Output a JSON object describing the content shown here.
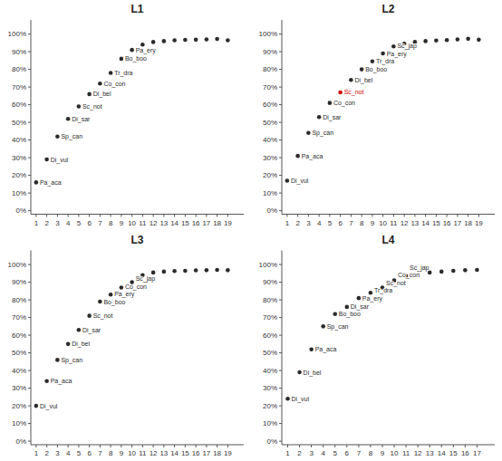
{
  "chart_data": [
    {
      "type": "scatter",
      "title": "L1",
      "x": [
        1,
        2,
        3,
        4,
        5,
        6,
        7,
        8,
        9,
        10,
        11,
        12,
        13,
        14,
        15,
        16,
        17,
        18,
        19
      ],
      "values": [
        0.16,
        0.29,
        0.42,
        0.52,
        0.59,
        0.66,
        0.72,
        0.78,
        0.86,
        0.91,
        0.94,
        0.955,
        0.96,
        0.965,
        0.967,
        0.968,
        0.97,
        0.972,
        0.965
      ],
      "color": "#2b2b2b",
      "annotations": [
        {
          "x": 1,
          "y": 0.16,
          "text": "Pa_aca",
          "color": "#2b2b2b"
        },
        {
          "x": 2,
          "y": 0.29,
          "text": "Di_vul",
          "color": "#2b2b2b"
        },
        {
          "x": 3,
          "y": 0.42,
          "text": "Sp_can",
          "color": "#2b2b2b"
        },
        {
          "x": 4,
          "y": 0.52,
          "text": "Di_sar",
          "color": "#2b2b2b"
        },
        {
          "x": 5,
          "y": 0.59,
          "text": "Sc_not",
          "color": "#2b2b2b"
        },
        {
          "x": 6,
          "y": 0.66,
          "text": "Di_bel",
          "color": "#2b2b2b"
        },
        {
          "x": 7,
          "y": 0.72,
          "text": "Co_con",
          "color": "#2b2b2b"
        },
        {
          "x": 8,
          "y": 0.78,
          "text": "Tr_dra",
          "color": "#2b2b2b"
        },
        {
          "x": 9,
          "y": 0.86,
          "text": "Bo_boo",
          "color": "#2b2b2b"
        },
        {
          "x": 10,
          "y": 0.91,
          "text": "Pa_ery",
          "color": "#2b2b2b"
        }
      ],
      "xlim": [
        0.5,
        20.5
      ],
      "ylim": [
        -0.02,
        1.08
      ],
      "xticks": [
        1,
        2,
        3,
        4,
        5,
        6,
        7,
        8,
        9,
        10,
        11,
        12,
        13,
        14,
        15,
        16,
        17,
        18,
        19
      ],
      "yticks": [
        {
          "value": 0.0,
          "label": "0%"
        },
        {
          "value": 0.1,
          "label": "10%"
        },
        {
          "value": 0.2,
          "label": "20%"
        },
        {
          "value": 0.3,
          "label": "30%"
        },
        {
          "value": 0.4,
          "label": "40%"
        },
        {
          "value": 0.5,
          "label": "50%"
        },
        {
          "value": 0.6,
          "label": "60%"
        },
        {
          "value": 0.7,
          "label": "70%"
        },
        {
          "value": 0.8,
          "label": "80%"
        },
        {
          "value": 0.9,
          "label": "90%"
        },
        {
          "value": 1.0,
          "label": "100%"
        }
      ],
      "grid": false
    },
    {
      "type": "scatter",
      "title": "L2",
      "x": [
        1,
        2,
        3,
        4,
        5,
        6,
        7,
        8,
        9,
        10,
        11,
        12,
        13,
        14,
        15,
        16,
        17,
        18,
        19
      ],
      "values": [
        0.17,
        0.31,
        0.44,
        0.53,
        0.61,
        0.67,
        0.74,
        0.8,
        0.845,
        0.89,
        0.93,
        0.945,
        0.955,
        0.96,
        0.963,
        0.966,
        0.97,
        0.973,
        0.968
      ],
      "colors": [
        "#2b2b2b",
        "#2b2b2b",
        "#2b2b2b",
        "#2b2b2b",
        "#2b2b2b",
        "#cc0000",
        "#2b2b2b",
        "#2b2b2b",
        "#2b2b2b",
        "#2b2b2b",
        "#2b2b2b",
        "#2b2b2b",
        "#2b2b2b",
        "#2b2b2b",
        "#2b2b2b",
        "#2b2b2b",
        "#2b2b2b",
        "#2b2b2b",
        "#2b2b2b"
      ],
      "annotations": [
        {
          "x": 1,
          "y": 0.17,
          "text": "Di_vul",
          "color": "#2b2b2b"
        },
        {
          "x": 2,
          "y": 0.31,
          "text": "Pa_aca",
          "color": "#2b2b2b"
        },
        {
          "x": 3,
          "y": 0.44,
          "text": "Sp_can",
          "color": "#2b2b2b"
        },
        {
          "x": 4,
          "y": 0.53,
          "text": "Di_sar",
          "color": "#2b2b2b"
        },
        {
          "x": 5,
          "y": 0.61,
          "text": "Co_con",
          "color": "#2b2b2b"
        },
        {
          "x": 6,
          "y": 0.67,
          "text": "Sc_not",
          "color": "#cc0000"
        },
        {
          "x": 7,
          "y": 0.74,
          "text": "Di_bel",
          "color": "#2b2b2b"
        },
        {
          "x": 8,
          "y": 0.8,
          "text": "Bo_boo",
          "color": "#2b2b2b"
        },
        {
          "x": 9,
          "y": 0.845,
          "text": "Tr_dra",
          "color": "#2b2b2b"
        },
        {
          "x": 10,
          "y": 0.89,
          "text": "Pa_ery",
          "color": "#2b2b2b"
        },
        {
          "x": 11,
          "y": 0.93,
          "text": "Sc_jap",
          "color": "#2b2b2b"
        }
      ],
      "xlim": [
        0.5,
        20.5
      ],
      "ylim": [
        -0.02,
        1.08
      ],
      "xticks": [
        1,
        2,
        3,
        4,
        5,
        6,
        7,
        8,
        9,
        10,
        11,
        12,
        13,
        14,
        15,
        16,
        17,
        18,
        19
      ],
      "yticks": [
        {
          "value": 0.0,
          "label": "0%"
        },
        {
          "value": 0.1,
          "label": "10%"
        },
        {
          "value": 0.2,
          "label": "20%"
        },
        {
          "value": 0.3,
          "label": "30%"
        },
        {
          "value": 0.4,
          "label": "40%"
        },
        {
          "value": 0.5,
          "label": "50%"
        },
        {
          "value": 0.6,
          "label": "60%"
        },
        {
          "value": 0.7,
          "label": "70%"
        },
        {
          "value": 0.8,
          "label": "80%"
        },
        {
          "value": 0.9,
          "label": "90%"
        },
        {
          "value": 1.0,
          "label": "100%"
        }
      ],
      "grid": false
    },
    {
      "type": "scatter",
      "title": "L3",
      "x": [
        1,
        2,
        3,
        4,
        5,
        6,
        7,
        8,
        9,
        10,
        11,
        12,
        13,
        14,
        15,
        16,
        17,
        18,
        19
      ],
      "values": [
        0.2,
        0.34,
        0.46,
        0.55,
        0.63,
        0.71,
        0.79,
        0.83,
        0.87,
        0.9,
        0.94,
        0.955,
        0.96,
        0.963,
        0.965,
        0.967,
        0.968,
        0.97,
        0.968
      ],
      "color": "#2b2b2b",
      "annotations": [
        {
          "x": 1,
          "y": 0.2,
          "text": "Di_vul",
          "color": "#2b2b2b"
        },
        {
          "x": 2,
          "y": 0.34,
          "text": "Pa_aca",
          "color": "#2b2b2b"
        },
        {
          "x": 3,
          "y": 0.46,
          "text": "Sp_can",
          "color": "#2b2b2b"
        },
        {
          "x": 4,
          "y": 0.55,
          "text": "Di_bel",
          "color": "#2b2b2b"
        },
        {
          "x": 5,
          "y": 0.63,
          "text": "Di_sar",
          "color": "#2b2b2b"
        },
        {
          "x": 6,
          "y": 0.71,
          "text": "Sc_not",
          "color": "#2b2b2b"
        },
        {
          "x": 7,
          "y": 0.79,
          "text": "Bo_boo",
          "color": "#2b2b2b"
        },
        {
          "x": 8,
          "y": 0.83,
          "text": "Pa_ery",
          "color": "#2b2b2b"
        },
        {
          "x": 9,
          "y": 0.87,
          "text": "Co_con",
          "color": "#2b2b2b"
        },
        {
          "x": 10,
          "y": 0.9,
          "text": "Sc_jap",
          "color": "#2b2b2b"
        }
      ],
      "xlim": [
        0.5,
        20.5
      ],
      "ylim": [
        -0.02,
        1.08
      ],
      "xticks": [
        1,
        2,
        3,
        4,
        5,
        6,
        7,
        8,
        9,
        10,
        11,
        12,
        13,
        14,
        15,
        16,
        17,
        18,
        19
      ],
      "yticks": [
        {
          "value": 0.0,
          "label": "0%"
        },
        {
          "value": 0.1,
          "label": "10%"
        },
        {
          "value": 0.2,
          "label": "20%"
        },
        {
          "value": 0.3,
          "label": "30%"
        },
        {
          "value": 0.4,
          "label": "40%"
        },
        {
          "value": 0.5,
          "label": "50%"
        },
        {
          "value": 0.6,
          "label": "60%"
        },
        {
          "value": 0.7,
          "label": "70%"
        },
        {
          "value": 0.8,
          "label": "80%"
        },
        {
          "value": 0.9,
          "label": "90%"
        },
        {
          "value": 1.0,
          "label": "100%"
        }
      ],
      "grid": false
    },
    {
      "type": "scatter",
      "title": "L4",
      "x": [
        1,
        2,
        3,
        4,
        5,
        6,
        7,
        8,
        9,
        10,
        11,
        12,
        13,
        14,
        15,
        16,
        17
      ],
      "values": [
        0.24,
        0.39,
        0.52,
        0.65,
        0.72,
        0.76,
        0.81,
        0.84,
        0.87,
        0.91,
        0.935,
        0.945,
        0.955,
        0.96,
        0.965,
        0.968,
        0.97
      ],
      "color": "#2b2b2b",
      "annotations": [
        {
          "x": 1,
          "y": 0.24,
          "text": "Di_vul",
          "color": "#2b2b2b"
        },
        {
          "x": 2,
          "y": 0.39,
          "text": "Di_bel",
          "color": "#2b2b2b"
        },
        {
          "x": 3,
          "y": 0.52,
          "text": "Pa_aca",
          "color": "#2b2b2b"
        },
        {
          "x": 4,
          "y": 0.65,
          "text": "Sp_can",
          "color": "#2b2b2b"
        },
        {
          "x": 5,
          "y": 0.72,
          "text": "Bo_boo",
          "color": "#2b2b2b"
        },
        {
          "x": 6,
          "y": 0.76,
          "text": "Di_sar",
          "color": "#2b2b2b"
        },
        {
          "x": 7,
          "y": 0.81,
          "text": "Pa_ery",
          "color": "#2b2b2b"
        },
        {
          "x": 8,
          "y": 0.84,
          "text": "Tr_dra",
          "color": "#2b2b2b"
        },
        {
          "x": 9,
          "y": 0.87,
          "text": "Sc_not",
          "color": "#2b2b2b"
        },
        {
          "x": 10,
          "y": 0.91,
          "text": "Co_con",
          "color": "#2b2b2b"
        },
        {
          "x": 11,
          "y": 0.935,
          "text": "Sc_jap",
          "color": "#2b2b2b"
        }
      ],
      "xlim": [
        0.5,
        18.5
      ],
      "ylim": [
        -0.02,
        1.08
      ],
      "xticks": [
        1,
        2,
        3,
        4,
        5,
        6,
        7,
        8,
        9,
        10,
        11,
        12,
        13,
        14,
        15,
        16,
        17
      ],
      "yticks": [
        {
          "value": 0.0,
          "label": "0%"
        },
        {
          "value": 0.1,
          "label": "10%"
        },
        {
          "value": 0.2,
          "label": "20%"
        },
        {
          "value": 0.3,
          "label": "30%"
        },
        {
          "value": 0.4,
          "label": "40%"
        },
        {
          "value": 0.5,
          "label": "50%"
        },
        {
          "value": 0.6,
          "label": "60%"
        },
        {
          "value": 0.7,
          "label": "70%"
        },
        {
          "value": 0.8,
          "label": "80%"
        },
        {
          "value": 0.9,
          "label": "90%"
        },
        {
          "value": 1.0,
          "label": "100%"
        }
      ],
      "grid": false
    }
  ]
}
